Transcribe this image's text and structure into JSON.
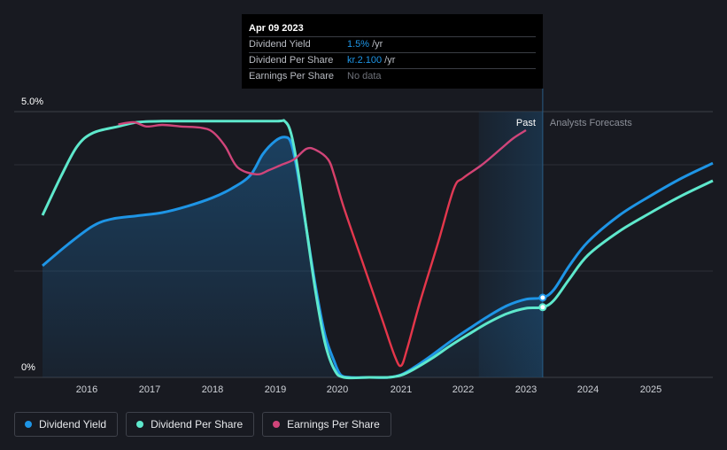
{
  "chart_data": {
    "type": "line",
    "x_ticks": [
      "2016",
      "2017",
      "2018",
      "2019",
      "2020",
      "2021",
      "2022",
      "2023",
      "2024",
      "2025"
    ],
    "y_ticks": [
      "5.0%",
      "0%"
    ],
    "ylim": [
      0,
      5.0
    ],
    "xlim": [
      2015.3,
      2026.0
    ],
    "regions": {
      "past_label": "Past",
      "forecast_label": "Analysts Forecasts",
      "past_end": 2023.27
    },
    "grid": true,
    "series": [
      {
        "name": "Dividend Yield",
        "color": "#1e95e6",
        "area": true,
        "points": [
          [
            2015.3,
            2.1
          ],
          [
            2015.7,
            2.5
          ],
          [
            2016.1,
            2.85
          ],
          [
            2016.4,
            2.98
          ],
          [
            2016.8,
            3.04
          ],
          [
            2017.2,
            3.1
          ],
          [
            2017.6,
            3.22
          ],
          [
            2018.0,
            3.38
          ],
          [
            2018.3,
            3.55
          ],
          [
            2018.6,
            3.8
          ],
          [
            2018.8,
            4.2
          ],
          [
            2019.0,
            4.45
          ],
          [
            2019.15,
            4.52
          ],
          [
            2019.25,
            4.42
          ],
          [
            2019.35,
            3.9
          ],
          [
            2019.5,
            2.8
          ],
          [
            2019.65,
            1.7
          ],
          [
            2019.8,
            0.8
          ],
          [
            2019.95,
            0.3
          ],
          [
            2020.05,
            0.05
          ],
          [
            2020.2,
            0.0
          ],
          [
            2020.5,
            0.0
          ],
          [
            2020.8,
            0.0
          ],
          [
            2021.0,
            0.05
          ],
          [
            2021.2,
            0.18
          ],
          [
            2021.5,
            0.42
          ],
          [
            2021.8,
            0.68
          ],
          [
            2022.1,
            0.92
          ],
          [
            2022.4,
            1.15
          ],
          [
            2022.7,
            1.35
          ],
          [
            2023.0,
            1.47
          ],
          [
            2023.27,
            1.5
          ],
          [
            2023.45,
            1.65
          ],
          [
            2023.7,
            2.1
          ],
          [
            2024.0,
            2.55
          ],
          [
            2024.5,
            3.05
          ],
          [
            2025.0,
            3.42
          ],
          [
            2025.5,
            3.75
          ],
          [
            2026.0,
            4.03
          ]
        ]
      },
      {
        "name": "Dividend Per Share",
        "color": "#5ee8cc",
        "area": false,
        "points": [
          [
            2015.3,
            3.05
          ],
          [
            2015.6,
            3.8
          ],
          [
            2015.85,
            4.35
          ],
          [
            2016.1,
            4.6
          ],
          [
            2016.5,
            4.72
          ],
          [
            2016.8,
            4.8
          ],
          [
            2017.2,
            4.82
          ],
          [
            2018.0,
            4.82
          ],
          [
            2019.0,
            4.82
          ],
          [
            2019.15,
            4.82
          ],
          [
            2019.25,
            4.6
          ],
          [
            2019.35,
            4.0
          ],
          [
            2019.5,
            2.8
          ],
          [
            2019.65,
            1.6
          ],
          [
            2019.8,
            0.65
          ],
          [
            2019.95,
            0.15
          ],
          [
            2020.1,
            0.0
          ],
          [
            2020.5,
            0.0
          ],
          [
            2020.8,
            0.0
          ],
          [
            2021.0,
            0.04
          ],
          [
            2021.2,
            0.15
          ],
          [
            2021.5,
            0.36
          ],
          [
            2021.8,
            0.6
          ],
          [
            2022.1,
            0.82
          ],
          [
            2022.4,
            1.03
          ],
          [
            2022.7,
            1.2
          ],
          [
            2023.0,
            1.3
          ],
          [
            2023.27,
            1.32
          ],
          [
            2023.45,
            1.45
          ],
          [
            2023.7,
            1.85
          ],
          [
            2024.0,
            2.3
          ],
          [
            2024.5,
            2.75
          ],
          [
            2025.0,
            3.1
          ],
          [
            2025.5,
            3.42
          ],
          [
            2026.0,
            3.7
          ]
        ]
      },
      {
        "name": "Earnings Per Share",
        "color": "#d0457a",
        "forecast_color": "#e5364a",
        "area": false,
        "points": [
          [
            2016.5,
            4.76
          ],
          [
            2016.75,
            4.8
          ],
          [
            2016.95,
            4.72
          ],
          [
            2017.2,
            4.75
          ],
          [
            2017.5,
            4.72
          ],
          [
            2017.8,
            4.7
          ],
          [
            2018.0,
            4.62
          ],
          [
            2018.2,
            4.35
          ],
          [
            2018.4,
            3.95
          ],
          [
            2018.7,
            3.82
          ],
          [
            2018.9,
            3.9
          ],
          [
            2019.1,
            4.0
          ],
          [
            2019.3,
            4.1
          ],
          [
            2019.5,
            4.3
          ],
          [
            2019.65,
            4.28
          ],
          [
            2019.85,
            4.1
          ],
          [
            2019.95,
            3.8
          ],
          [
            2020.1,
            3.2
          ],
          [
            2020.4,
            2.15
          ],
          [
            2020.7,
            1.1
          ],
          [
            2020.9,
            0.4
          ],
          [
            2021.0,
            0.22
          ],
          [
            2021.1,
            0.55
          ],
          [
            2021.3,
            1.4
          ],
          [
            2021.6,
            2.55
          ],
          [
            2021.85,
            3.55
          ],
          [
            2022.0,
            3.75
          ],
          [
            2022.3,
            4.0
          ],
          [
            2022.6,
            4.3
          ],
          [
            2022.8,
            4.5
          ],
          [
            2023.0,
            4.65
          ]
        ]
      }
    ]
  },
  "tooltip": {
    "date": "Apr 09 2023",
    "rows": [
      {
        "name": "Dividend Yield",
        "value": "1.5%",
        "unit": "/yr"
      },
      {
        "name": "Dividend Per Share",
        "value": "kr.2.100",
        "unit": "/yr"
      },
      {
        "name": "Earnings Per Share",
        "value": "No data",
        "unit": ""
      }
    ]
  },
  "legend": [
    {
      "label": "Dividend Yield",
      "color": "#1e95e6"
    },
    {
      "label": "Dividend Per Share",
      "color": "#5ee8cc"
    },
    {
      "label": "Earnings Per Share",
      "color": "#d0457a"
    }
  ]
}
